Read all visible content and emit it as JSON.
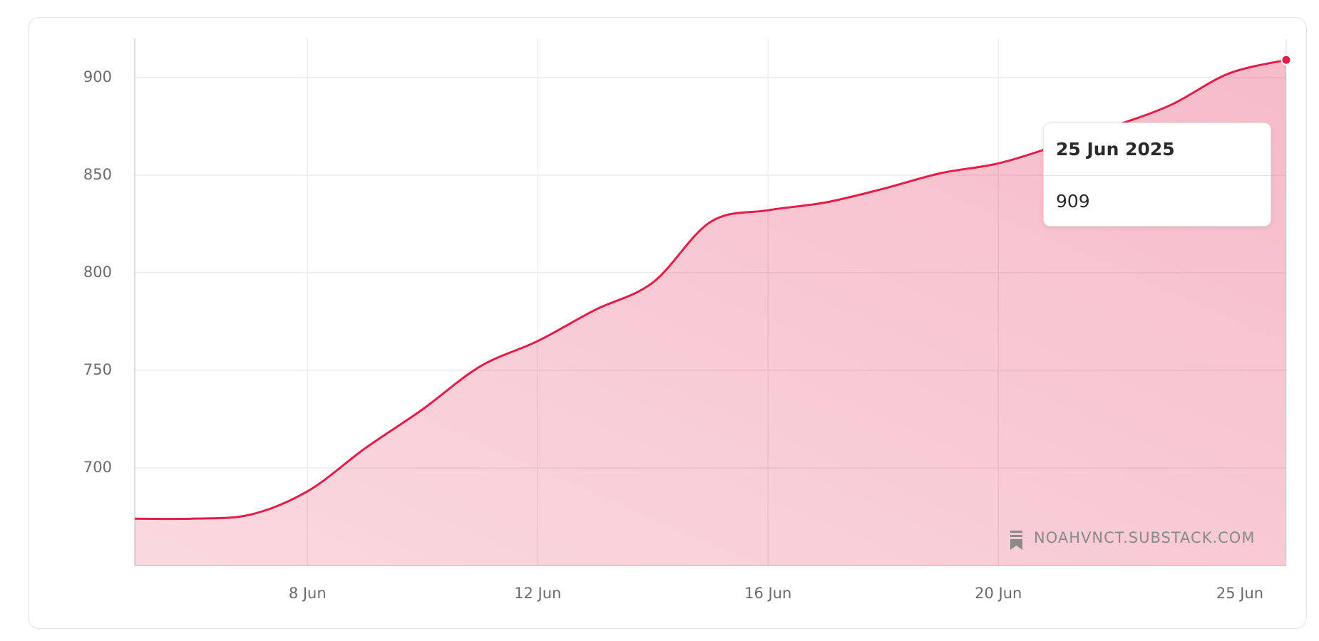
{
  "chart_data": {
    "type": "area",
    "x": [
      "2025-06-05",
      "2025-06-06",
      "2025-06-07",
      "2025-06-08",
      "2025-06-09",
      "2025-06-10",
      "2025-06-11",
      "2025-06-12",
      "2025-06-13",
      "2025-06-14",
      "2025-06-15",
      "2025-06-16",
      "2025-06-17",
      "2025-06-18",
      "2025-06-19",
      "2025-06-20",
      "2025-06-21",
      "2025-06-22",
      "2025-06-23",
      "2025-06-24",
      "2025-06-25"
    ],
    "series": [
      {
        "color": "#e11d48",
        "values": [
          674,
          674,
          676,
          688,
          710,
          730,
          752,
          765,
          781,
          795,
          826,
          832,
          836,
          843,
          851,
          856,
          865,
          875,
          886,
          902,
          909
        ]
      }
    ],
    "xlim": [
      "2025-06-05",
      "2025-06-25"
    ],
    "xticks": [
      {
        "value": "2025-06-08",
        "label": "8 Jun"
      },
      {
        "value": "2025-06-12",
        "label": "12 Jun"
      },
      {
        "value": "2025-06-16",
        "label": "16 Jun"
      },
      {
        "value": "2025-06-20",
        "label": "20 Jun"
      },
      {
        "value": "2025-06-25",
        "label": "25 Jun"
      }
    ],
    "ylim": [
      650,
      920
    ],
    "yticks": [
      700,
      750,
      800,
      850,
      900
    ],
    "grid": true,
    "tooltip": {
      "title": "25 Jun 2025"
    },
    "watermark": "NOAHVNCT.SUBSTACK.COM"
  }
}
